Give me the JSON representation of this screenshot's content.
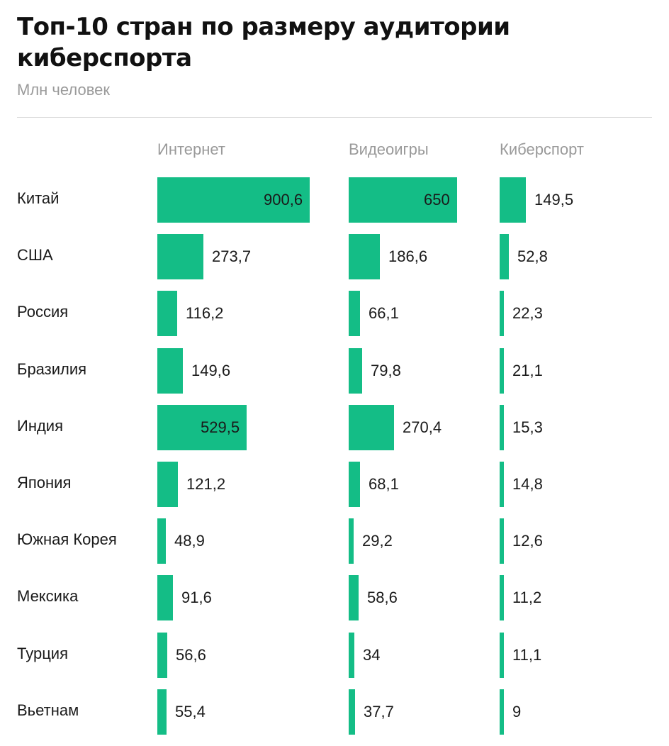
{
  "chart_data": {
    "type": "bar",
    "title": "Топ-10 стран по размеру аудитории киберспорта",
    "subtitle": "Млн человек",
    "bar_color": "#14bd86",
    "categories": [
      "Китай",
      "США",
      "Россия",
      "Бразилия",
      "Индия",
      "Япония",
      "Южная Корея",
      "Мексика",
      "Турция",
      "Вьетнам"
    ],
    "series": [
      {
        "name": "Интернет",
        "values": [
          900.6,
          273.7,
          116.2,
          149.6,
          529.5,
          121.2,
          48.9,
          91.6,
          56.6,
          55.4
        ],
        "labels": [
          "900,6",
          "273,7",
          "116,2",
          "149,6",
          "529,5",
          "121,2",
          "48,9",
          "91,6",
          "56,6",
          "55,4"
        ]
      },
      {
        "name": "Видеоигры",
        "values": [
          650,
          186.6,
          66.1,
          79.8,
          270.4,
          68.1,
          29.2,
          58.6,
          34,
          37.7
        ],
        "labels": [
          "650",
          "186,6",
          "66,1",
          "79,8",
          "270,4",
          "68,1",
          "29,2",
          "58,6",
          "34",
          "37,7"
        ]
      },
      {
        "name": "Киберспорт",
        "values": [
          149.5,
          52.8,
          22.3,
          21.1,
          15.3,
          14.8,
          12.6,
          11.2,
          11.1,
          9
        ],
        "labels": [
          "149,5",
          "52,8",
          "22,3",
          "21,1",
          "15,3",
          "14,8",
          "12,6",
          "11,2",
          "11,1",
          "9"
        ]
      }
    ]
  }
}
